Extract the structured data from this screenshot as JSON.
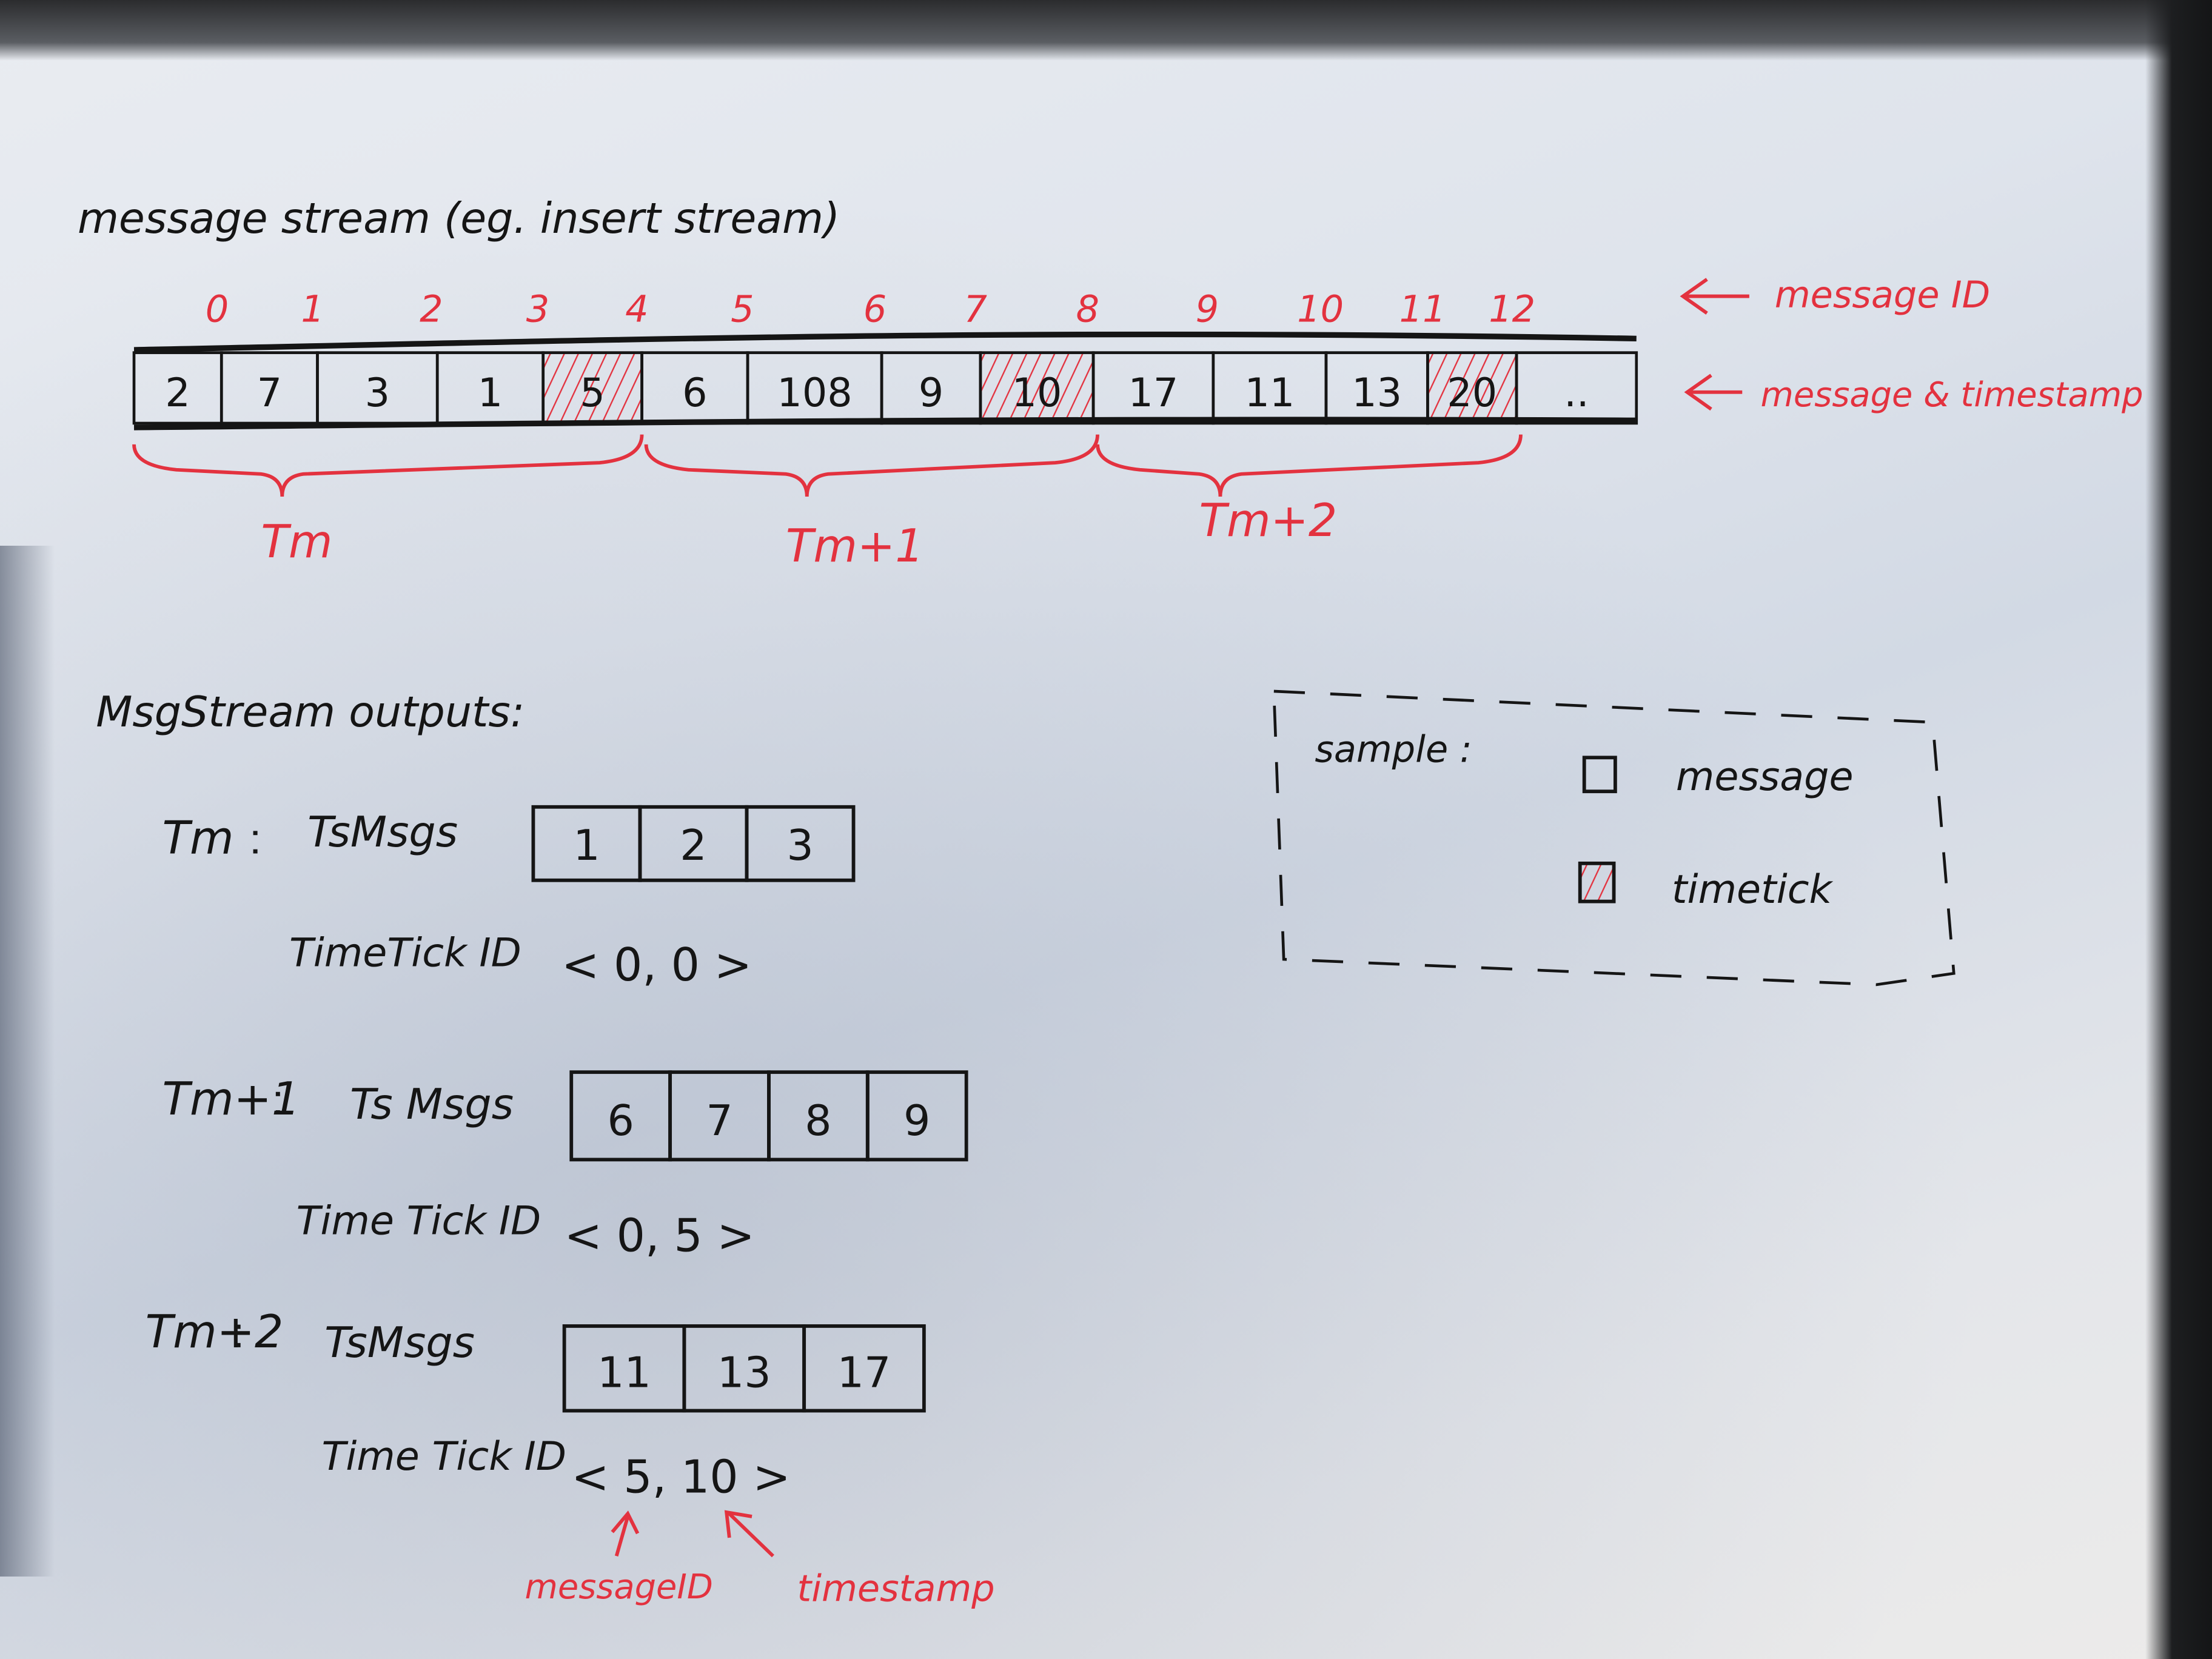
{
  "title": "message stream (eg. insert stream)",
  "stream": {
    "message_id_label": "message ID",
    "message_timestamp_label": "message & timestamp",
    "cells": [
      {
        "id": "0",
        "value": "2",
        "timetick": false
      },
      {
        "id": "1",
        "value": "7",
        "timetick": false
      },
      {
        "id": "2",
        "value": "3",
        "timetick": false
      },
      {
        "id": "3",
        "value": "1",
        "timetick": false
      },
      {
        "id": "4",
        "value": "5",
        "timetick": true
      },
      {
        "id": "5",
        "value": "6",
        "timetick": false
      },
      {
        "id": "6",
        "value": "108",
        "timetick": false
      },
      {
        "id": "7",
        "value": "9",
        "timetick": false
      },
      {
        "id": "8",
        "value": "10",
        "timetick": true
      },
      {
        "id": "9",
        "value": "17",
        "timetick": false
      },
      {
        "id": "10",
        "value": "11",
        "timetick": false
      },
      {
        "id": "11",
        "value": "13",
        "timetick": false
      },
      {
        "id": "12",
        "value": "20",
        "timetick": true
      },
      {
        "id": "",
        "value": "..",
        "timetick": false
      }
    ],
    "groups": [
      "Tm",
      "Tm+1",
      "Tm+2"
    ]
  },
  "outputs": {
    "heading": "MsgStream outputs:",
    "items": [
      {
        "period": "Tm",
        "msgs_label": "TsMsgs",
        "msgs": [
          "1",
          "2",
          "3"
        ],
        "timetick_label": "TimeTick ID",
        "timetick": "< 0, 0 >"
      },
      {
        "period": "Tm+1",
        "msgs_label": "Ts Msgs",
        "msgs": [
          "6",
          "7",
          "8",
          "9"
        ],
        "timetick_label": "Time Tick ID",
        "timetick": "< 0, 5 >"
      },
      {
        "period": "Tm+2",
        "msgs_label": "TsMsgs",
        "msgs": [
          "11",
          "13",
          "17"
        ],
        "timetick_label": "Time Tick ID",
        "timetick": "< 5, 10 >"
      }
    ],
    "annotation_message_id": "messageID",
    "annotation_timestamp": "timestamp"
  },
  "legend": {
    "title": "sample :",
    "message": "message",
    "timetick": "timetick"
  },
  "colors": {
    "ink": "#151515",
    "red_pen": "#e3323f",
    "paper": "#e2e6ec"
  },
  "icons": [
    "left-arrow-icon",
    "up-arrow-icon",
    "hatched-square-icon",
    "empty-square-icon",
    "brace-icon"
  ]
}
